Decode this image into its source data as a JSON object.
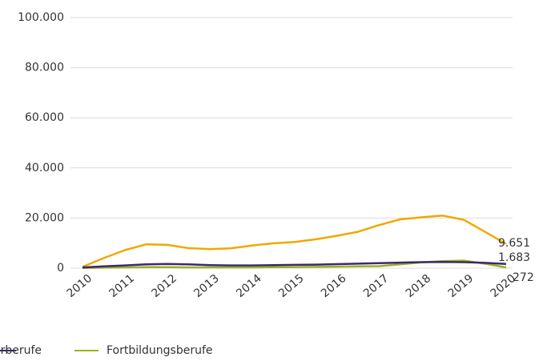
{
  "chart_data": {
    "type": "line",
    "categories": [
      "2010",
      null,
      "2011",
      null,
      "2012",
      null,
      "2013",
      null,
      "2014",
      null,
      "2015",
      null,
      "2016",
      null,
      "2017",
      null,
      "2018",
      null,
      "2019",
      null,
      "2020"
    ],
    "series": [
      {
        "color": "#f0a800",
        "values": [
          500,
          4000,
          7200,
          9500,
          9300,
          8000,
          7600,
          7900,
          9000,
          9900,
          10400,
          11500,
          12900,
          14500,
          17200,
          19500,
          20300,
          21000,
          19300,
          14500,
          9651
        ],
        "value_labels": [
          null,
          null,
          null,
          null,
          null,
          null,
          null,
          null,
          null,
          null,
          null,
          null,
          null,
          null,
          null,
          null,
          null,
          null,
          null,
          null,
          "9.651"
        ]
      },
      {
        "color": "#9bb220",
        "name": "Fortbildungsberufe",
        "values": [
          100,
          200,
          300,
          400,
          400,
          300,
          300,
          300,
          300,
          400,
          400,
          500,
          600,
          700,
          800,
          1500,
          2300,
          2800,
          3000,
          1800,
          272
        ],
        "value_labels": [
          null,
          null,
          null,
          null,
          null,
          null,
          null,
          null,
          null,
          null,
          null,
          null,
          null,
          null,
          null,
          null,
          null,
          null,
          null,
          null,
          "272"
        ]
      },
      {
        "color": "#3b2870",
        "values": [
          300,
          700,
          1100,
          1500,
          1700,
          1500,
          1200,
          1100,
          1100,
          1200,
          1300,
          1400,
          1600,
          1800,
          2000,
          2200,
          2400,
          2500,
          2400,
          2100,
          1683
        ],
        "value_labels": [
          null,
          null,
          null,
          null,
          null,
          null,
          null,
          null,
          null,
          null,
          null,
          null,
          null,
          null,
          null,
          null,
          null,
          null,
          null,
          null,
          "1.683"
        ]
      }
    ],
    "legend_fragment": "rberufe",
    "ylim": [
      0,
      100000
    ],
    "yticks": [
      0,
      {
        "value": 20000,
        "label": "20.000"
      },
      {
        "value": 40000,
        "label": "40.000"
      },
      {
        "value": 60000,
        "label": "60.000"
      },
      {
        "value": 80000,
        "label": "80.000"
      },
      {
        "value": 100000,
        "label": "100.000"
      }
    ],
    "grid": true
  }
}
